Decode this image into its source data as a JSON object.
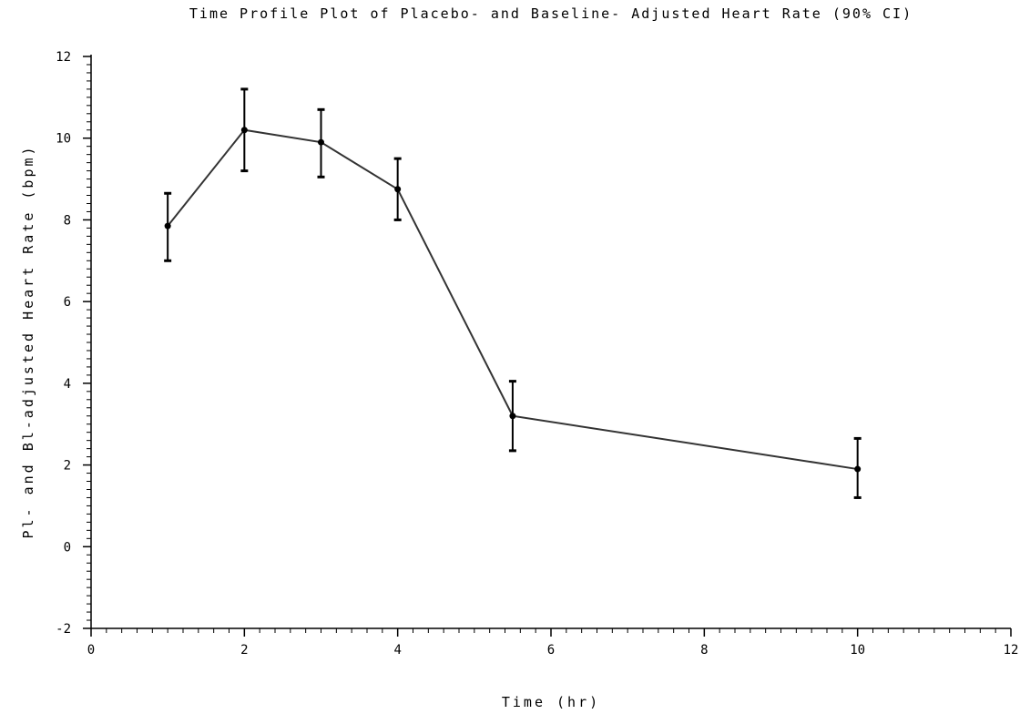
{
  "chart_data": {
    "type": "line",
    "title": "Time Profile Plot of Placebo- and Baseline- Adjusted Heart Rate (90% CI)",
    "xlabel": "Time (hr)",
    "ylabel": "Pl- and Bl-adjusted Heart Rate (bpm)",
    "xlim": [
      0,
      12
    ],
    "ylim": [
      -2,
      12
    ],
    "xticks": [
      0,
      2,
      4,
      6,
      8,
      10,
      12
    ],
    "yticks": [
      -2,
      0,
      2,
      4,
      6,
      8,
      10,
      12
    ],
    "xtick_labels": [
      "0",
      "2",
      "4",
      "6",
      "8",
      "10",
      "12"
    ],
    "ytick_labels": [
      "-2",
      "0",
      "2",
      "4",
      "6",
      "8",
      "10",
      "12"
    ],
    "grid": false,
    "series": [
      {
        "x": [
          1,
          2,
          3,
          4,
          5.5,
          10
        ],
        "y": [
          7.85,
          10.2,
          9.9,
          8.75,
          3.2,
          1.9
        ],
        "lower": [
          7.0,
          9.2,
          9.05,
          8.0,
          2.35,
          1.2
        ],
        "upper": [
          8.65,
          11.2,
          10.7,
          9.5,
          4.05,
          2.65
        ]
      }
    ],
    "colors": {
      "line": "#333333",
      "axis": "#000000"
    }
  }
}
